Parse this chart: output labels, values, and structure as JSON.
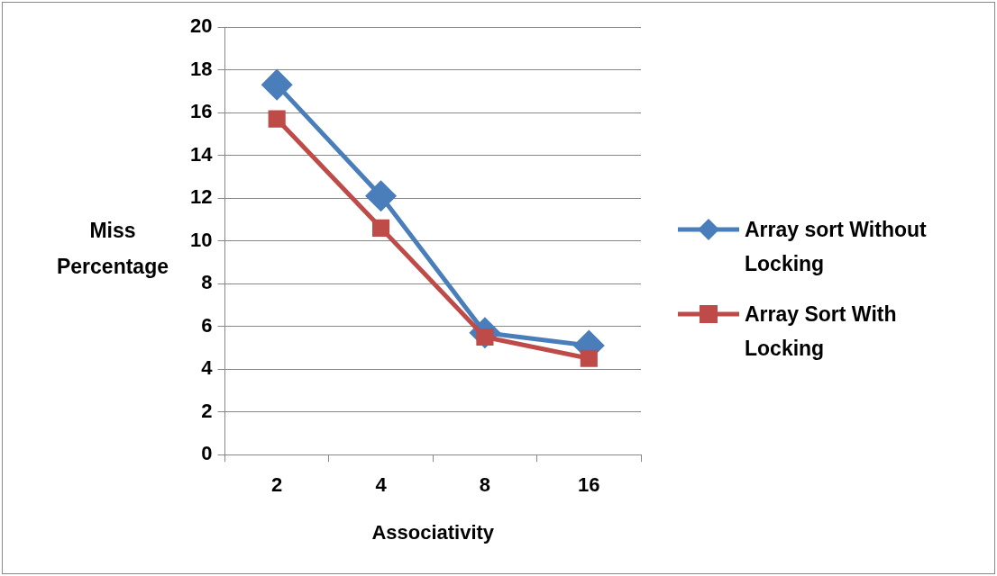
{
  "chart_data": {
    "type": "line",
    "xlabel": "Associativity",
    "ylabel": "Miss Percentage",
    "categories": [
      "2",
      "4",
      "8",
      "16"
    ],
    "series": [
      {
        "name": "Array sort Without Locking",
        "color": "#4a7ebb",
        "marker": "diamond",
        "values": [
          17.3,
          12.1,
          5.7,
          5.1
        ]
      },
      {
        "name": "Array Sort With Locking",
        "color": "#be4b48",
        "marker": "square",
        "values": [
          15.7,
          10.6,
          5.5,
          4.5
        ]
      }
    ],
    "ylim": [
      0,
      20
    ],
    "yticks": [
      0,
      2,
      4,
      6,
      8,
      10,
      12,
      14,
      16,
      18,
      20
    ],
    "grid": "y",
    "legend": "right"
  }
}
